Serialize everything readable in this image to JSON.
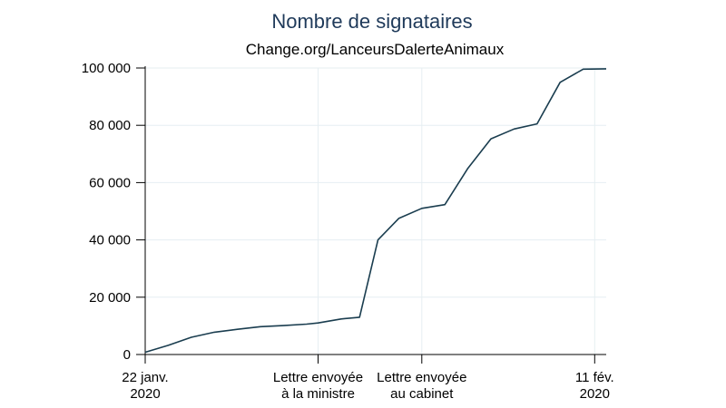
{
  "chart_data": {
    "type": "line",
    "title": "Nombre de signataires",
    "subtitle": "Change.org/LanceursDalerteAnimaux",
    "xlabel": "",
    "ylabel": "",
    "xlim": [
      0,
      20
    ],
    "ylim": [
      0,
      100000
    ],
    "grid": true,
    "y_ticks": [
      {
        "value": 0,
        "label": "0"
      },
      {
        "value": 20000,
        "label": "20 000"
      },
      {
        "value": 40000,
        "label": "40 000"
      },
      {
        "value": 60000,
        "label": "60 000"
      },
      {
        "value": 80000,
        "label": "80 000"
      },
      {
        "value": 100000,
        "label": "100 000"
      }
    ],
    "x_ticks": [
      {
        "value": 0,
        "lines": [
          "22 janv.",
          "2020"
        ]
      },
      {
        "value": 7.5,
        "lines": [
          "Lettre envoyée",
          "à la ministre"
        ]
      },
      {
        "value": 12,
        "lines": [
          "Lettre envoyée",
          "au cabinet"
        ]
      },
      {
        "value": 19.5,
        "lines": [
          "11 fév.",
          "2020"
        ]
      }
    ],
    "series": [
      {
        "x": [
          0,
          1,
          2,
          3,
          4,
          5,
          6,
          7,
          7.5,
          8.5,
          9.3,
          10.1,
          11,
          12,
          13,
          14,
          15,
          16,
          17,
          18,
          19,
          20
        ],
        "values": [
          800,
          3200,
          6000,
          7800,
          8800,
          9700,
          10100,
          10600,
          11000,
          12400,
          13000,
          40000,
          47500,
          51000,
          52300,
          65000,
          75300,
          78700,
          80500,
          95000,
          99600,
          99700
        ]
      }
    ]
  }
}
